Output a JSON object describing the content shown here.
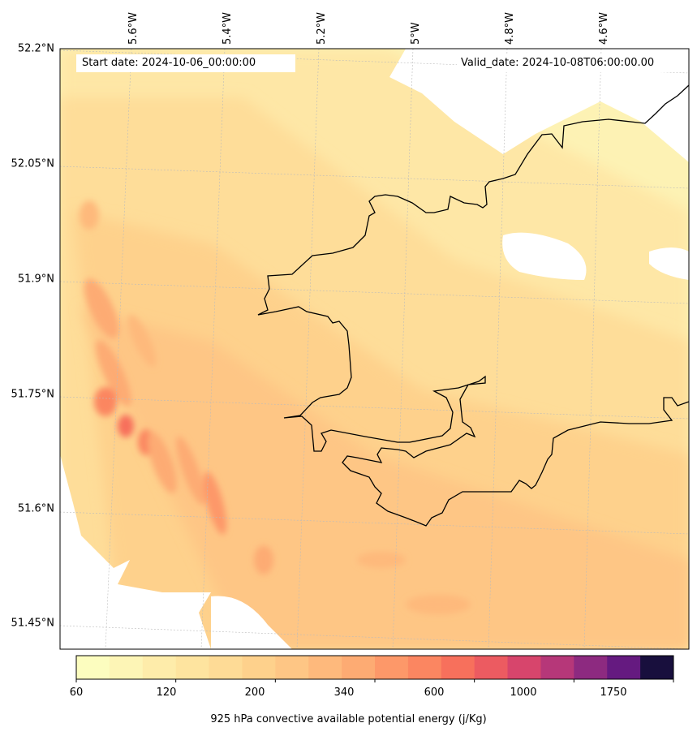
{
  "map": {
    "start_label": "Start date: 2024-10-06_00:00:00",
    "valid_label": "Valid_date: 2024-10-08T06:00:00.00",
    "lat_labels": [
      "52.2°N",
      "52.05°N",
      "51.9°N",
      "51.75°N",
      "51.6°N",
      "51.45°N"
    ],
    "lon_labels": [
      "5.6°W",
      "5.4°W",
      "5.2°W",
      "5°W",
      "4.8°W",
      "4.6°W"
    ],
    "field": "925 hPa convective available potential energy",
    "coastline_color": "#000000",
    "land_color": "#ffffff"
  },
  "colorbar": {
    "title": "925 hPa convective available potential energy (j/Kg)",
    "tick_labels": [
      "60",
      "120",
      "200",
      "340",
      "600",
      "1000",
      "1750"
    ],
    "colors": [
      "#fcfdbf",
      "#fdf5b6",
      "#feecaa",
      "#fee49f",
      "#fedb96",
      "#fed18c",
      "#fec685",
      "#feb97c",
      "#fdab73",
      "#fd9869",
      "#fb8661",
      "#f7705c",
      "#ec5b61",
      "#d7456c",
      "#b63779",
      "#8d2a80",
      "#651a80",
      "#180f3d"
    ]
  }
}
